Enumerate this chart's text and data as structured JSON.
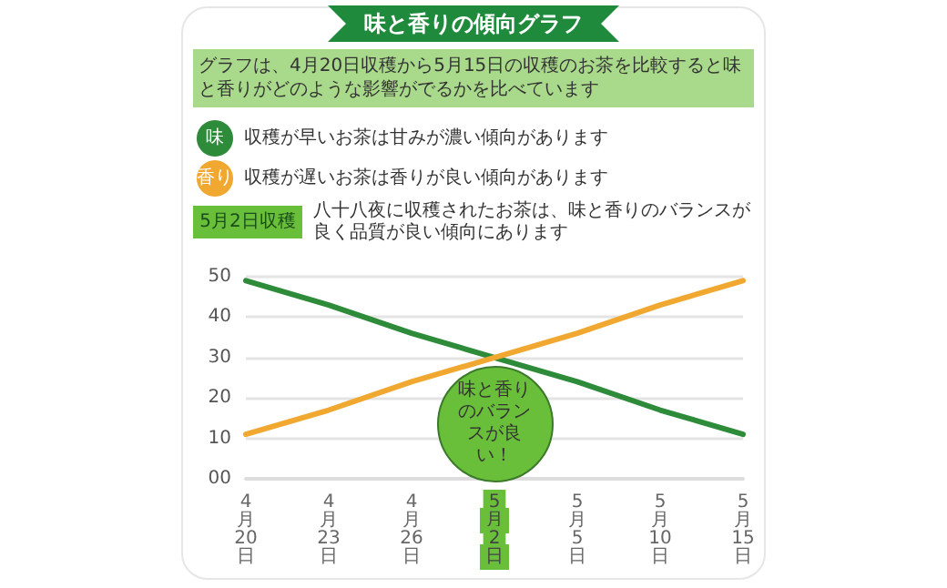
{
  "chart_data": {
    "type": "line",
    "title": "味と香りの傾向グラフ",
    "subtitle": "グラフは、4月20日収穫から5月15日の収穫のお茶を比較すると味と香りがどのような影響がでるかを比べています",
    "categories": [
      "4月20日",
      "4月23日",
      "4月26日",
      "5月2日",
      "5月5日",
      "5月10日",
      "5月15日"
    ],
    "series": [
      {
        "name": "味",
        "color": "#2e8b3a",
        "values": [
          49,
          43,
          36,
          30,
          24,
          17,
          11
        ]
      },
      {
        "name": "香り",
        "color": "#f0a830",
        "values": [
          11,
          17,
          24,
          30,
          36,
          43,
          49
        ]
      }
    ],
    "ylim": [
      0,
      50
    ],
    "yticks": [
      {
        "value": 0,
        "label": "00"
      },
      10,
      20,
      30,
      40,
      50
    ],
    "grid": "y",
    "marker": "none",
    "line_style": "solid",
    "legend": false,
    "annotations": [
      "収穫が早いお茶は甘みが濃い傾向があります",
      "収穫が遅いお茶は香りが良い傾向があります",
      "5月2日収穫",
      "八十八夜に収穫されたお茶は、味と香りのバランスが良く品質が良い傾向にあります",
      "味と香りのバランスが良い！"
    ]
  }
}
